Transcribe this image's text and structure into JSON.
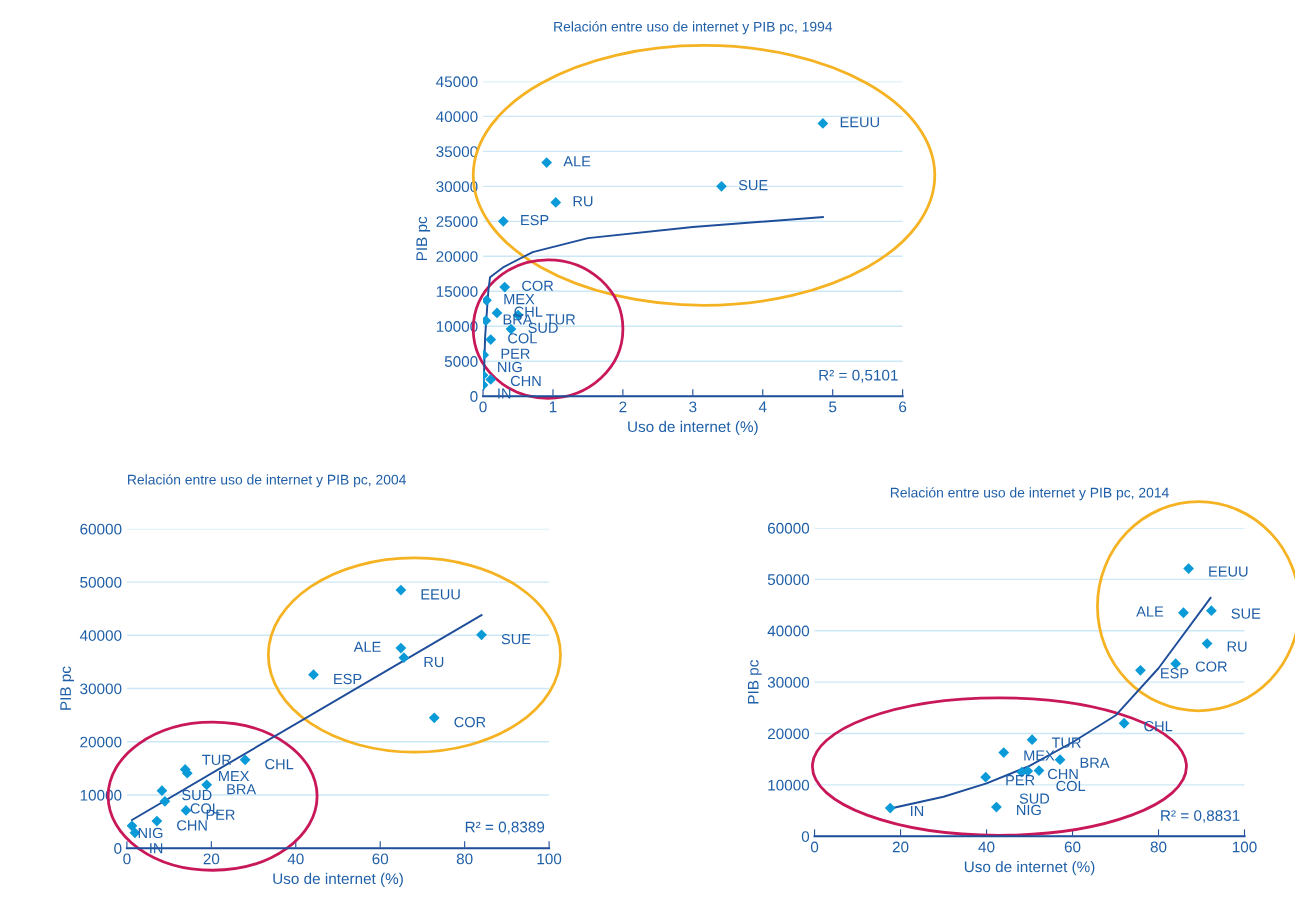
{
  "chart_data": [
    {
      "type": "scatter",
      "title": "Relación entre uso de internet y PIB pc, 1994",
      "xlabel": "Uso de internet (%)",
      "ylabel": "PIB pc",
      "xlim": [
        0,
        6
      ],
      "xticks": [
        0,
        1,
        2,
        3,
        4,
        5,
        6
      ],
      "ylim": [
        0,
        45000
      ],
      "yticks": [
        0,
        5000,
        10000,
        15000,
        20000,
        25000,
        30000,
        35000,
        40000,
        45000
      ],
      "grid": "y",
      "marker": "diamond",
      "legend": false,
      "series": [
        {
          "color": "#0a9ad7",
          "x": [
            4.86,
            0.91,
            3.41,
            1.04,
            0.29,
            0.31,
            0.05,
            0.2,
            0.5,
            0.04,
            0.4,
            0.11,
            0.01,
            0.0,
            0.11,
            0.0
          ],
          "values": [
            39000,
            33400,
            30000,
            27700,
            25000,
            15600,
            13700,
            11900,
            11600,
            10800,
            9600,
            8100,
            5900,
            3000,
            2400,
            1600
          ]
        },
        {
          "type": "line",
          "color": "#1f4e9a",
          "marker": "none",
          "x": [
            0.005,
            0.015,
            0.03,
            0.076,
            0.1,
            0.3,
            0.71,
            1.5,
            3,
            4.86
          ],
          "values": [
            1000,
            3700,
            8500,
            15100,
            17000,
            18500,
            20600,
            22600,
            24200,
            25600
          ]
        }
      ],
      "annotations": [
        {
          "text": "EEUU",
          "x": 4.86,
          "y": 39000
        },
        {
          "text": "ALE",
          "x": 0.91,
          "y": 33400
        },
        {
          "text": "SUE",
          "x": 3.41,
          "y": 30000
        },
        {
          "text": "RU",
          "x": 1.04,
          "y": 27700
        },
        {
          "text": "ESP",
          "x": 0.29,
          "y": 25000
        },
        {
          "text": "COR",
          "x": 0.31,
          "y": 15600
        },
        {
          "text": "MEX",
          "x": 0.05,
          "y": 13700
        },
        {
          "text": "CHL",
          "x": 0.2,
          "y": 11900
        },
        {
          "text": "TUR",
          "x": 0.5,
          "y": 11600
        },
        {
          "text": "BRA",
          "x": 0.04,
          "y": 10800
        },
        {
          "text": "SUD",
          "x": 0.4,
          "y": 9600
        },
        {
          "text": "COL",
          "x": 0.11,
          "y": 8100
        },
        {
          "text": "PER",
          "x": 0.01,
          "y": 5900
        },
        {
          "text": "NIG",
          "x": 0.0,
          "y": 3000
        },
        {
          "text": "CHN",
          "x": 0.11,
          "y": 2400
        },
        {
          "text": "IN",
          "x": 0.0,
          "y": 1600
        },
        "R² = 0,5101"
      ]
    },
    {
      "type": "scatter",
      "title": "Relación entre uso de internet y PIB pc, 2004",
      "xlabel": "Uso de internet (%)",
      "ylabel": "PIB pc",
      "xlim": [
        0,
        100
      ],
      "xticks": [
        0,
        20,
        40,
        60,
        80,
        100
      ],
      "ylim": [
        0,
        60000
      ],
      "yticks": [
        0,
        10000,
        20000,
        30000,
        40000,
        50000,
        60000
      ],
      "grid": "y",
      "marker": "diamond",
      "legend": false,
      "series": [
        {
          "color": "#0a9ad7",
          "x": [
            64.9,
            84,
            64.9,
            65.6,
            44.2,
            72.8,
            28.0,
            13.8,
            14.3,
            18.9,
            8.3,
            9.0,
            14.0,
            7.1,
            1.2,
            1.9
          ],
          "values": [
            48500,
            40100,
            37600,
            35800,
            32600,
            24500,
            16600,
            14800,
            14100,
            11900,
            10800,
            8800,
            7100,
            5100,
            4200,
            2900
          ]
        },
        {
          "type": "line",
          "color": "#1f4e9a",
          "marker": "none",
          "x": [
            1.2,
            84
          ],
          "values": [
            5300,
            43800
          ]
        }
      ],
      "annotations": [
        {
          "text": "EEUU",
          "x": 64.9,
          "y": 48500
        },
        {
          "text": "SUE",
          "x": 84,
          "y": 40100
        },
        {
          "text": "ALE",
          "x": 64.9,
          "y": 37600
        },
        {
          "text": "RU",
          "x": 65.6,
          "y": 35800
        },
        {
          "text": "ESP",
          "x": 44.2,
          "y": 32600
        },
        {
          "text": "COR",
          "x": 72.8,
          "y": 24500
        },
        {
          "text": "CHL",
          "x": 28.0,
          "y": 16600
        },
        {
          "text": "TUR",
          "x": 13.8,
          "y": 14800
        },
        {
          "text": "MEX",
          "x": 14.3,
          "y": 14100
        },
        {
          "text": "BRA",
          "x": 18.9,
          "y": 11900
        },
        {
          "text": "SUD",
          "x": 8.3,
          "y": 10800
        },
        {
          "text": "COL",
          "x": 9.0,
          "y": 8800
        },
        {
          "text": "PER",
          "x": 14.0,
          "y": 7100
        },
        {
          "text": "CHN",
          "x": 7.1,
          "y": 5100
        },
        {
          "text": "NIG",
          "x": 1.2,
          "y": 4200
        },
        {
          "text": "IN",
          "x": 1.9,
          "y": 2900
        },
        "R² = 0,8389"
      ]
    },
    {
      "type": "scatter",
      "title": "Relación entre uso de internet y PIB pc, 2014",
      "xlabel": "Uso de internet (%)",
      "ylabel": "PIB pc",
      "xlim": [
        0,
        100
      ],
      "xticks": [
        0,
        20,
        40,
        60,
        80,
        100
      ],
      "ylim": [
        0,
        60000
      ],
      "yticks": [
        0,
        10000,
        20000,
        30000,
        40000,
        50000,
        60000
      ],
      "grid": "y",
      "marker": "diamond",
      "legend": false,
      "series": [
        {
          "color": "#0a9ad7",
          "x": [
            87.0,
            85.8,
            92.3,
            91.3,
            84.0,
            75.8,
            72.0,
            50.6,
            44.0,
            57.1,
            49.6,
            48.2,
            52.2,
            39.8,
            42.3,
            17.6
          ],
          "values": [
            52100,
            43500,
            43900,
            37500,
            33600,
            32300,
            22000,
            18800,
            16300,
            14900,
            12700,
            12500,
            12800,
            11500,
            5700,
            5500
          ]
        },
        {
          "type": "line",
          "color": "#1f4e9a",
          "marker": "none",
          "x": [
            17.6,
            30,
            40,
            50,
            60,
            70,
            80,
            92.1
          ],
          "values": [
            5400,
            7700,
            10300,
            13700,
            18300,
            23500,
            32700,
            46400
          ]
        }
      ],
      "annotations": [
        {
          "text": "EEUU",
          "x": 87.0,
          "y": 52100
        },
        {
          "text": "ALE",
          "x": 85.8,
          "y": 43500
        },
        {
          "text": "SUE",
          "x": 92.3,
          "y": 43900
        },
        {
          "text": "RU",
          "x": 91.3,
          "y": 37500
        },
        {
          "text": "COR",
          "x": 84.0,
          "y": 33600
        },
        {
          "text": "ESP",
          "x": 75.8,
          "y": 32300
        },
        {
          "text": "CHL",
          "x": 72.0,
          "y": 22000
        },
        {
          "text": "TUR",
          "x": 50.6,
          "y": 18800
        },
        {
          "text": "MEX",
          "x": 44.0,
          "y": 16300
        },
        {
          "text": "BRA",
          "x": 57.1,
          "y": 14900
        },
        {
          "text": "CHN",
          "x": 49.6,
          "y": 12700
        },
        {
          "text": "SUD",
          "x": 48.2,
          "y": 12500
        },
        {
          "text": "COL",
          "x": 52.2,
          "y": 12800
        },
        {
          "text": "PER",
          "x": 39.8,
          "y": 11500
        },
        {
          "text": "NIG",
          "x": 42.3,
          "y": 5700
        },
        {
          "text": "IN",
          "x": 17.6,
          "y": 5500
        },
        "R² = 0,8831"
      ]
    }
  ]
}
